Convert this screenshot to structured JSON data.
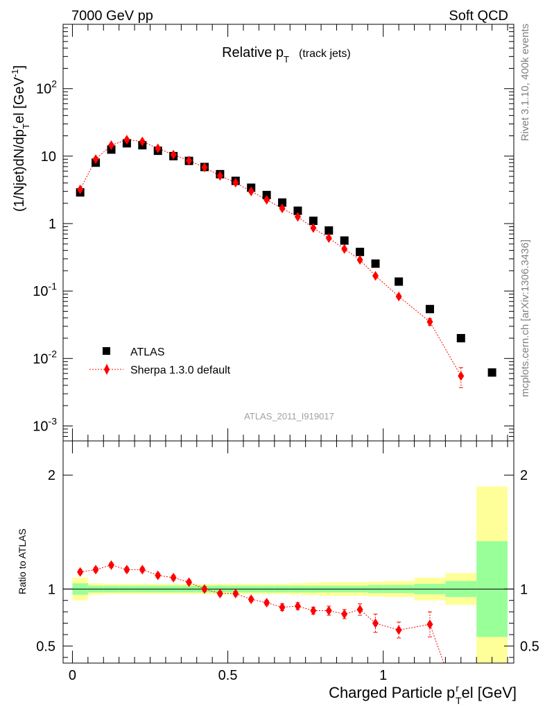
{
  "header": {
    "left": "7000 GeV pp",
    "right": "Soft QCD"
  },
  "side_labels": {
    "rivet": "Rivet 3.1.10,  400k events",
    "mcplots": "mcplots.cern.ch [arXiv:1306.3436]"
  },
  "chart_data": [
    {
      "type": "scatter",
      "panel": "main",
      "title": {
        "main": "Relative p",
        "sub": "T",
        "tail": "(track jets)"
      },
      "ylabel": "(1/Njet)dN/dp_T^rel [GeV^-1]",
      "analysis_id": "ATLAS_2011_I919017",
      "yscale": "log",
      "ylim": [
        0.0006,
        900
      ],
      "xlim": [
        -0.03,
        1.42
      ],
      "y_tick_labels": [
        "10^-3",
        "10^-2",
        "10^-1",
        "1",
        "10",
        "10^2"
      ],
      "legend_position": "lower-left",
      "legend": [
        {
          "label": "ATLAS",
          "marker": "square",
          "color": "#000000"
        },
        {
          "label": "Sherpa 1.3.0 default",
          "marker": "diamond-dotted-line",
          "color": "#ff0000"
        }
      ],
      "series": [
        {
          "name": "ATLAS",
          "x": [
            0.025,
            0.075,
            0.125,
            0.175,
            0.225,
            0.275,
            0.325,
            0.375,
            0.425,
            0.475,
            0.525,
            0.575,
            0.625,
            0.675,
            0.725,
            0.775,
            0.825,
            0.875,
            0.925,
            0.975,
            1.05,
            1.15,
            1.25,
            1.35
          ],
          "y": [
            2.9,
            8.0,
            12.5,
            15.5,
            14.5,
            12.0,
            10.0,
            8.5,
            6.9,
            5.4,
            4.3,
            3.4,
            2.65,
            2.05,
            1.55,
            1.1,
            0.79,
            0.56,
            0.38,
            0.255,
            0.138,
            0.054,
            0.02,
            0.0062
          ]
        },
        {
          "name": "Sherpa 1.3.0 default",
          "x": [
            0.025,
            0.075,
            0.125,
            0.175,
            0.225,
            0.275,
            0.325,
            0.375,
            0.425,
            0.475,
            0.525,
            0.575,
            0.625,
            0.675,
            0.725,
            0.775,
            0.825,
            0.875,
            0.925,
            0.975,
            1.05,
            1.15,
            1.25
          ],
          "y": [
            3.2,
            9.0,
            14.5,
            17.5,
            16.5,
            13.0,
            10.5,
            8.6,
            6.8,
            5.1,
            4.05,
            3.0,
            2.25,
            1.68,
            1.26,
            0.86,
            0.61,
            0.42,
            0.29,
            0.168,
            0.083,
            0.035,
            0.0055
          ],
          "y_err": [
            0,
            0,
            0,
            0,
            0,
            0,
            0,
            0,
            0,
            0,
            0,
            0,
            0,
            0,
            0,
            0,
            0,
            0,
            0,
            0,
            0,
            0.004,
            0.0018
          ]
        }
      ]
    },
    {
      "type": "scatter",
      "panel": "ratio",
      "xlabel": "Charged Particle p_T^rel [GeV]",
      "ylabel": "Ratio to ATLAS",
      "ylim": [
        0.35,
        2.3
      ],
      "xlim": [
        -0.03,
        1.42
      ],
      "x_ticks": [
        0,
        0.5,
        1
      ],
      "x_tick_labels": [
        "0",
        "0.5",
        "1"
      ],
      "y_ticks": [
        0.5,
        1,
        2
      ],
      "y_tick_labels": [
        "0.5",
        "1",
        "2"
      ],
      "reference_line": 1,
      "bands": {
        "bin_edges": [
          0,
          0.05,
          0.1,
          0.15,
          0.2,
          0.25,
          0.3,
          0.35,
          0.4,
          0.45,
          0.5,
          0.55,
          0.6,
          0.65,
          0.7,
          0.75,
          0.8,
          0.85,
          0.9,
          0.95,
          1.0,
          1.1,
          1.2,
          1.3,
          1.4
        ],
        "green_halfwidth": [
          0.05,
          0.03,
          0.03,
          0.03,
          0.03,
          0.03,
          0.03,
          0.03,
          0.03,
          0.03,
          0.03,
          0.03,
          0.03,
          0.03,
          0.03,
          0.03,
          0.03,
          0.03,
          0.03,
          0.035,
          0.035,
          0.045,
          0.07,
          0.42
        ],
        "yellow_halfwidth": [
          0.1,
          0.05,
          0.045,
          0.045,
          0.045,
          0.045,
          0.045,
          0.045,
          0.045,
          0.045,
          0.045,
          0.045,
          0.045,
          0.045,
          0.05,
          0.055,
          0.06,
          0.06,
          0.06,
          0.065,
          0.07,
          0.1,
          0.14,
          0.9
        ],
        "green_color": "#99ff99",
        "yellow_color": "#ffff99"
      },
      "series": [
        {
          "name": "Sherpa 1.3.0 default",
          "x": [
            0.025,
            0.075,
            0.125,
            0.175,
            0.225,
            0.275,
            0.325,
            0.375,
            0.425,
            0.475,
            0.525,
            0.575,
            0.625,
            0.675,
            0.725,
            0.775,
            0.825,
            0.875,
            0.925,
            0.975,
            1.05,
            1.15
          ],
          "y": [
            1.15,
            1.17,
            1.21,
            1.17,
            1.17,
            1.12,
            1.1,
            1.06,
            1.0,
            0.96,
            0.96,
            0.91,
            0.88,
            0.84,
            0.85,
            0.81,
            0.81,
            0.78,
            0.82,
            0.7,
            0.64,
            0.69
          ],
          "y_err": [
            0.02,
            0.02,
            0.02,
            0.02,
            0.02,
            0.02,
            0.02,
            0.02,
            0.02,
            0.02,
            0.02,
            0.02,
            0.02,
            0.03,
            0.03,
            0.03,
            0.04,
            0.04,
            0.05,
            0.08,
            0.07,
            0.11
          ],
          "tail_to": {
            "x": 1.195,
            "y": 0.35
          }
        }
      ]
    }
  ],
  "colors": {
    "atlas": "#000000",
    "sherpa": "#ff0000",
    "axis": "#000000",
    "muted_text": "#808080"
  }
}
